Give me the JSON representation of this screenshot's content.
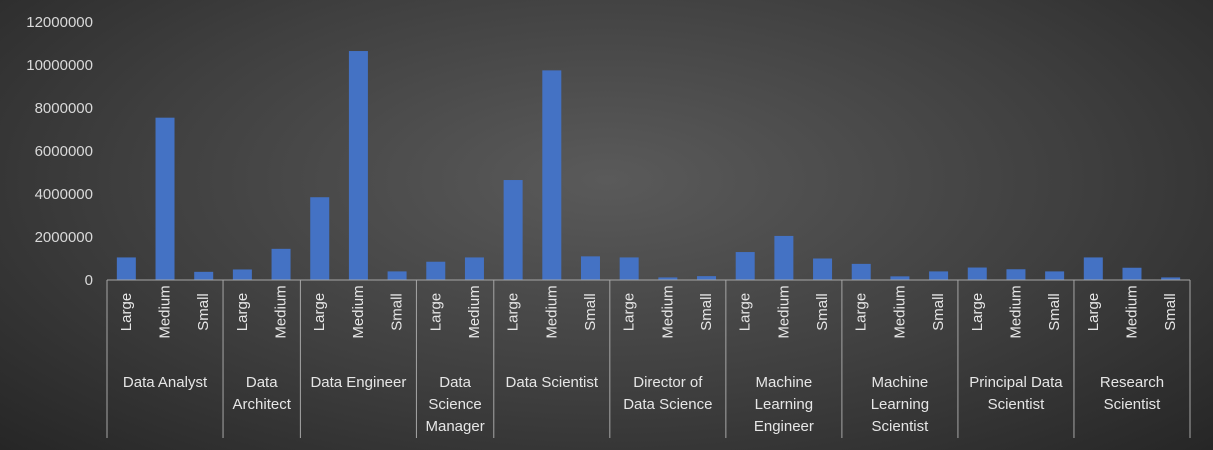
{
  "chart_data": {
    "type": "bar",
    "title": "",
    "xlabel": "",
    "ylabel": "",
    "ylim": [
      0,
      12000000
    ],
    "yticks": [
      0,
      2000000,
      4000000,
      6000000,
      8000000,
      10000000,
      12000000
    ],
    "grid": false,
    "legend": "none",
    "bar_color": "#4472c4",
    "groups": [
      {
        "name": [
          "Data Analyst"
        ],
        "bars": [
          {
            "label": "Large",
            "value": 1050000
          },
          {
            "label": "Medium",
            "value": 7550000
          },
          {
            "label": "Small",
            "value": 380000
          }
        ]
      },
      {
        "name": [
          "Data",
          "Architect"
        ],
        "bars": [
          {
            "label": "Large",
            "value": 490000
          },
          {
            "label": "Medium",
            "value": 1450000
          }
        ]
      },
      {
        "name": [
          "Data Engineer"
        ],
        "bars": [
          {
            "label": "Large",
            "value": 3850000
          },
          {
            "label": "Medium",
            "value": 10650000
          },
          {
            "label": "Small",
            "value": 400000
          }
        ]
      },
      {
        "name": [
          "Data",
          "Science",
          "Manager"
        ],
        "bars": [
          {
            "label": "Large",
            "value": 850000
          },
          {
            "label": "Medium",
            "value": 1050000
          }
        ]
      },
      {
        "name": [
          "Data Scientist"
        ],
        "bars": [
          {
            "label": "Large",
            "value": 4650000
          },
          {
            "label": "Medium",
            "value": 9750000
          },
          {
            "label": "Small",
            "value": 1100000
          }
        ]
      },
      {
        "name": [
          "Director of",
          "Data Science"
        ],
        "bars": [
          {
            "label": "Large",
            "value": 1050000
          },
          {
            "label": "Medium",
            "value": 120000
          },
          {
            "label": "Small",
            "value": 180000
          }
        ]
      },
      {
        "name": [
          "Machine",
          "Learning",
          "Engineer"
        ],
        "bars": [
          {
            "label": "Large",
            "value": 1300000
          },
          {
            "label": "Medium",
            "value": 2050000
          },
          {
            "label": "Small",
            "value": 1000000
          }
        ]
      },
      {
        "name": [
          "Machine",
          "Learning",
          "Scientist"
        ],
        "bars": [
          {
            "label": "Large",
            "value": 750000
          },
          {
            "label": "Medium",
            "value": 170000
          },
          {
            "label": "Small",
            "value": 400000
          }
        ]
      },
      {
        "name": [
          "Principal Data",
          "Scientist"
        ],
        "bars": [
          {
            "label": "Large",
            "value": 580000
          },
          {
            "label": "Medium",
            "value": 500000
          },
          {
            "label": "Small",
            "value": 400000
          }
        ]
      },
      {
        "name": [
          "Research",
          "Scientist"
        ],
        "bars": [
          {
            "label": "Large",
            "value": 1050000
          },
          {
            "label": "Medium",
            "value": 570000
          },
          {
            "label": "Small",
            "value": 120000
          }
        ]
      }
    ]
  }
}
